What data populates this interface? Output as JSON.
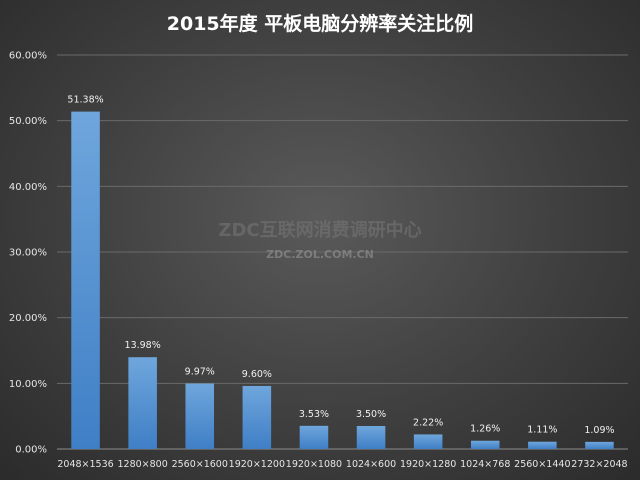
{
  "chart_data": {
    "type": "bar",
    "title": "2015年度 平板电脑分辨率关注比例",
    "categories": [
      "2048×1536",
      "1280×800",
      "2560×1600",
      "1920×1200",
      "1920×1080",
      "1024×600",
      "1920×1280",
      "1024×768",
      "2560×1440",
      "2732×2048"
    ],
    "values": [
      51.38,
      13.98,
      9.97,
      9.6,
      3.53,
      3.5,
      2.22,
      1.26,
      1.11,
      1.09
    ],
    "data_labels": [
      "51.38%",
      "13.98%",
      "9.97%",
      "9.60%",
      "3.53%",
      "3.50%",
      "2.22%",
      "1.26%",
      "1.11%",
      "1.09%"
    ],
    "ylim": [
      0,
      60
    ],
    "yticks": [
      "0.00%",
      "10.00%",
      "20.00%",
      "30.00%",
      "40.00%",
      "50.00%",
      "60.00%"
    ],
    "xlabel": "",
    "ylabel": "",
    "grid": true,
    "colors": {
      "bar_top": "#6fa6dc",
      "bar_bottom": "#3f7fc6"
    }
  },
  "watermark": {
    "main": "ZDC互联网消费调研中心",
    "sub": "ZDC.ZOL.COM.CN"
  }
}
